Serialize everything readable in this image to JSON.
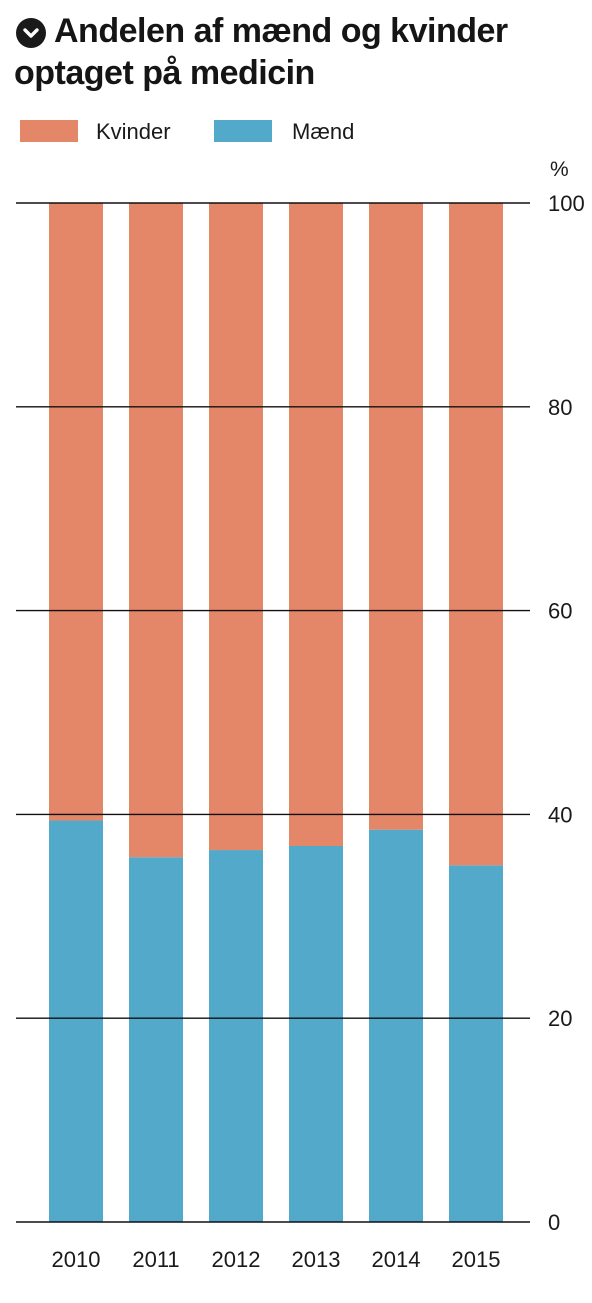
{
  "chart_data": {
    "type": "bar",
    "stacked": true,
    "title": "Andelen af mænd og kvinder optaget på medicin",
    "title_lines": [
      "Andelen af mænd og kvinder",
      "optaget på medicin"
    ],
    "title_icon": "chevron-down-icon",
    "unit_label": "%",
    "categories": [
      "2010",
      "2011",
      "2012",
      "2013",
      "2014",
      "2015"
    ],
    "series": [
      {
        "name": "Mænd",
        "color": "#52a9ca",
        "values": [
          39.4,
          35.8,
          36.5,
          36.9,
          38.5,
          35.0
        ]
      },
      {
        "name": "Kvinder",
        "color": "#e48768",
        "values": [
          60.6,
          64.2,
          63.5,
          63.1,
          61.5,
          65.0
        ]
      }
    ],
    "legend": [
      {
        "name": "Kvinder",
        "color": "#e48768"
      },
      {
        "name": "Mænd",
        "color": "#52a9ca"
      }
    ],
    "legend_position": "top-left",
    "ylim": [
      0,
      100
    ],
    "yticks": [
      "0",
      "20",
      "40",
      "60",
      "80",
      "100"
    ],
    "y_axis_side": "right",
    "grid": true,
    "xlabel": "",
    "ylabel": ""
  }
}
